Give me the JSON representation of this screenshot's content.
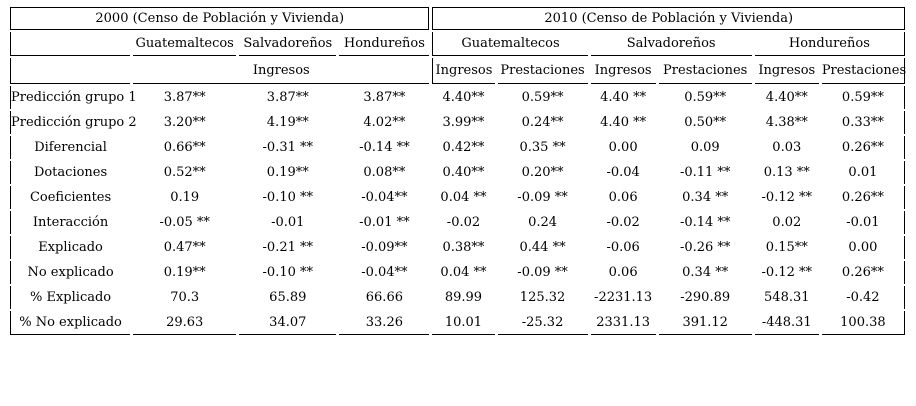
{
  "header": {
    "year_2000": "2000 (Censo de Población y Vivienda)",
    "year_2010": "2010 (Censo de Población y Vivienda)",
    "groups_2000": [
      "Guatemaltecos",
      "Salvadoreños",
      "Hondureños"
    ],
    "groups_2010": [
      "Guatemaltecos",
      "Salvadoreños",
      "Hondureños"
    ],
    "measure_2000": "Ingresos",
    "measures_2010": [
      "Ingresos",
      "Prestaciones",
      "Ingresos",
      "Prestaciones",
      "Ingresos",
      "Prestaciones"
    ]
  },
  "rows": [
    {
      "label": "Predicción grupo 1",
      "values": [
        "3.87**",
        "3.87**",
        "3.87**",
        "4.40**",
        "0.59**",
        "4.40 **",
        "0.59**",
        "4.40**",
        "0.59**"
      ]
    },
    {
      "label": "Predicción grupo 2",
      "values": [
        "3.20**",
        "4.19**",
        "4.02**",
        "3.99**",
        "0.24**",
        "4.40 **",
        "0.50**",
        "4.38**",
        "0.33**"
      ]
    },
    {
      "label": "Diferencial",
      "values": [
        "0.66**",
        "-0.31 **",
        "-0.14 **",
        "0.42**",
        "0.35 **",
        "0.00",
        "0.09",
        "0.03",
        "0.26**"
      ]
    },
    {
      "label": "Dotaciones",
      "values": [
        "0.52**",
        "0.19**",
        "0.08**",
        "0.40**",
        "0.20**",
        "-0.04",
        "-0.11 **",
        "0.13 **",
        "0.01"
      ]
    },
    {
      "label": "Coeficientes",
      "values": [
        "0.19",
        "-0.10 **",
        "-0.04**",
        "0.04 **",
        "-0.09 **",
        "0.06",
        "0.34 **",
        "-0.12 **",
        "0.26**"
      ]
    },
    {
      "label": "Interacción",
      "values": [
        "-0.05 **",
        "-0.01",
        "-0.01 **",
        "-0.02",
        "0.24",
        "-0.02",
        "-0.14 **",
        "0.02",
        "-0.01"
      ]
    },
    {
      "label": "Explicado",
      "values": [
        "0.47**",
        "-0.21 **",
        "-0.09**",
        "0.38**",
        "0.44 **",
        "-0.06",
        "-0.26 **",
        "0.15**",
        "0.00"
      ]
    },
    {
      "label": "No explicado",
      "values": [
        "0.19**",
        "-0.10 **",
        "-0.04**",
        "0.04 **",
        "-0.09 **",
        "0.06",
        "0.34 **",
        "-0.12 **",
        "0.26**"
      ]
    },
    {
      "label": "% Explicado",
      "values": [
        "70.3",
        "65.89",
        "66.66",
        "89.99",
        "125.32",
        "-2231.13",
        "-290.89",
        "548.31",
        "-0.42"
      ]
    },
    {
      "label": "% No explicado",
      "values": [
        "29.63",
        "34.07",
        "33.26",
        "10.01",
        "-25.32",
        "2331.13",
        "391.12",
        "-448.31",
        "100.38"
      ]
    }
  ]
}
